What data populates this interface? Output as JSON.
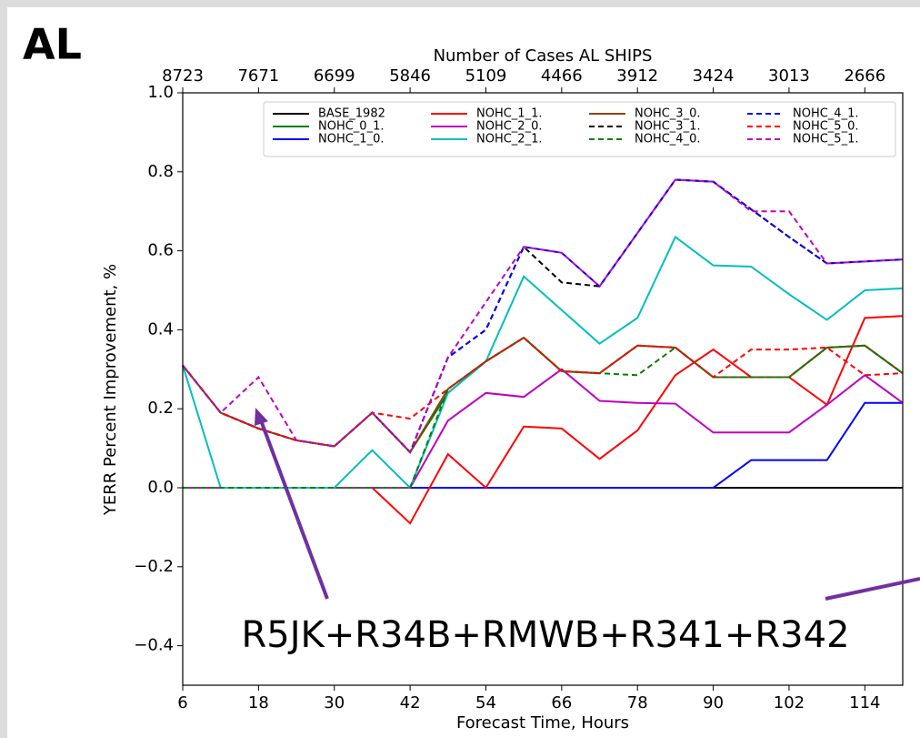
{
  "chart_data": {
    "type": "line",
    "panel_label": "AL",
    "title": "Number of Cases AL SHIPS",
    "x_label": "Forecast Time, Hours",
    "y_label": "YERR Percent Improvement, %",
    "annotation": "R5JK+R34B+RMWB+R341+R342",
    "x": [
      6,
      12,
      18,
      24,
      30,
      36,
      42,
      48,
      54,
      60,
      66,
      72,
      78,
      84,
      90,
      96,
      102,
      108,
      114,
      120
    ],
    "xlim": [
      6,
      120
    ],
    "xticks": [
      6,
      18,
      30,
      42,
      54,
      66,
      78,
      90,
      102,
      114
    ],
    "top_xticks": [
      {
        "value": 6,
        "label": "8723"
      },
      {
        "value": 18,
        "label": "7671"
      },
      {
        "value": 30,
        "label": "6699"
      },
      {
        "value": 42,
        "label": "5846"
      },
      {
        "value": 54,
        "label": "5109"
      },
      {
        "value": 66,
        "label": "4466"
      },
      {
        "value": 78,
        "label": "3912"
      },
      {
        "value": 90,
        "label": "3424"
      },
      {
        "value": 102,
        "label": "3013"
      },
      {
        "value": 114,
        "label": "2666"
      }
    ],
    "ylim": [
      -0.5,
      1.0
    ],
    "yticks": [
      {
        "value": -0.4,
        "label": "−0.4"
      },
      {
        "value": -0.2,
        "label": "−0.2"
      },
      {
        "value": 0,
        "label": "0.0"
      },
      {
        "value": 0.2,
        "label": "0.2"
      },
      {
        "value": 0.4,
        "label": "0.4"
      },
      {
        "value": 0.6,
        "label": "0.6"
      },
      {
        "value": 0.8,
        "label": "0.8"
      },
      {
        "value": 1.0,
        "label": "1.0"
      }
    ],
    "legend_position": "upper right",
    "series": [
      {
        "name": "BASE_1982",
        "color": "#000000",
        "linestyle": "solid",
        "values": [
          0,
          0,
          0,
          0,
          0,
          0,
          0,
          0,
          0,
          0,
          0,
          0,
          0,
          0,
          0,
          0,
          0,
          0,
          0,
          0
        ]
      },
      {
        "name": "NOHC_0_1.",
        "color": "#008000",
        "linestyle": "solid",
        "values": [
          0.31,
          0.19,
          0.15,
          0.12,
          0.105,
          0.19,
          0.09,
          0.24,
          0.32,
          0.38,
          0.295,
          0.29,
          0.36,
          0.355,
          0.28,
          0.28,
          0.28,
          0.355,
          0.36,
          0.29
        ]
      },
      {
        "name": "NOHC_1_0.",
        "color": "#0000ff",
        "linestyle": "solid",
        "values": [
          0,
          0,
          0,
          0,
          0,
          0,
          0,
          0,
          0,
          0,
          0,
          0,
          0,
          0,
          0,
          0.07,
          0.07,
          0.07,
          0.215,
          0.215
        ]
      },
      {
        "name": "NOHC_1_1.",
        "color": "#ff0000",
        "linestyle": "solid",
        "values": [
          0,
          0,
          0,
          0,
          0,
          0,
          -0.09,
          0.085,
          0,
          0.155,
          0.15,
          0.073,
          0.145,
          0.285,
          0.35,
          0.28,
          0.28,
          0.21,
          0.43,
          0.435
        ]
      },
      {
        "name": "NOHC_2_0.",
        "color": "#bf00bf",
        "linestyle": "solid",
        "values": [
          0,
          0,
          0,
          0,
          0,
          0,
          0,
          0.17,
          0.24,
          0.23,
          0.3,
          0.22,
          0.215,
          0.213,
          0.14,
          0.14,
          0.14,
          0.21,
          0.285,
          0.215
        ]
      },
      {
        "name": "NOHC_2_1.",
        "color": "#00bfbf",
        "linestyle": "solid",
        "values": [
          0.31,
          0,
          0,
          0,
          0,
          0.095,
          0,
          0.24,
          0.32,
          0.535,
          0.45,
          0.365,
          0.43,
          0.635,
          0.563,
          0.56,
          0.49,
          0.425,
          0.5,
          0.505
        ]
      },
      {
        "name": "NOHC_3_0.",
        "color": "#8b4513",
        "linestyle": "solid",
        "values": [
          0.31,
          0.19,
          0.15,
          0.12,
          0.105,
          0.19,
          0.09,
          0.25,
          0.32,
          0.38,
          0.295,
          0.29,
          0.36,
          0.355,
          0.28,
          0.28,
          0.28,
          0.355,
          0.36,
          0.29
        ]
      },
      {
        "name": "NOHC_3_1.",
        "color": "#000000",
        "linestyle": "dashed",
        "values": [
          0.31,
          0.19,
          0.15,
          0.12,
          0.105,
          0.19,
          0.09,
          0.33,
          0.4,
          0.61,
          0.52,
          0.51,
          0.645,
          0.78,
          0.775,
          0.705,
          0.635,
          0.568,
          0.573,
          0.578
        ]
      },
      {
        "name": "NOHC_4_0.",
        "color": "#008000",
        "linestyle": "dashed",
        "values": [
          0,
          0,
          0,
          0,
          0,
          0,
          0,
          0.25,
          0.32,
          0.38,
          0.295,
          0.29,
          0.285,
          0.355,
          0.28,
          0.28,
          0.28,
          0.355,
          0.36,
          0.29
        ]
      },
      {
        "name": "NOHC_4_1.",
        "color": "#0000ff",
        "linestyle": "dashed",
        "values": [
          0.31,
          0.19,
          0.15,
          0.12,
          0.105,
          0.19,
          0.09,
          0.33,
          0.4,
          0.61,
          0.595,
          0.51,
          0.645,
          0.78,
          0.775,
          0.705,
          0.635,
          0.568,
          0.573,
          0.578
        ]
      },
      {
        "name": "NOHC_5_0.",
        "color": "#ff0000",
        "linestyle": "dashed",
        "values": [
          0.31,
          0.19,
          0.15,
          0.12,
          0.105,
          0.19,
          0.175,
          0.25,
          0.32,
          0.38,
          0.295,
          0.29,
          0.36,
          0.355,
          0.28,
          0.35,
          0.35,
          0.355,
          0.285,
          0.29
        ]
      },
      {
        "name": "NOHC_5_1.",
        "color": "#bf00bf",
        "linestyle": "dashed",
        "values": [
          0.31,
          0.19,
          0.28,
          0.12,
          0.105,
          0.19,
          0.09,
          0.33,
          0.47,
          0.61,
          0.595,
          0.51,
          0.645,
          0.78,
          0.775,
          0.7,
          0.7,
          0.568,
          0.573,
          0.578
        ]
      }
    ]
  }
}
